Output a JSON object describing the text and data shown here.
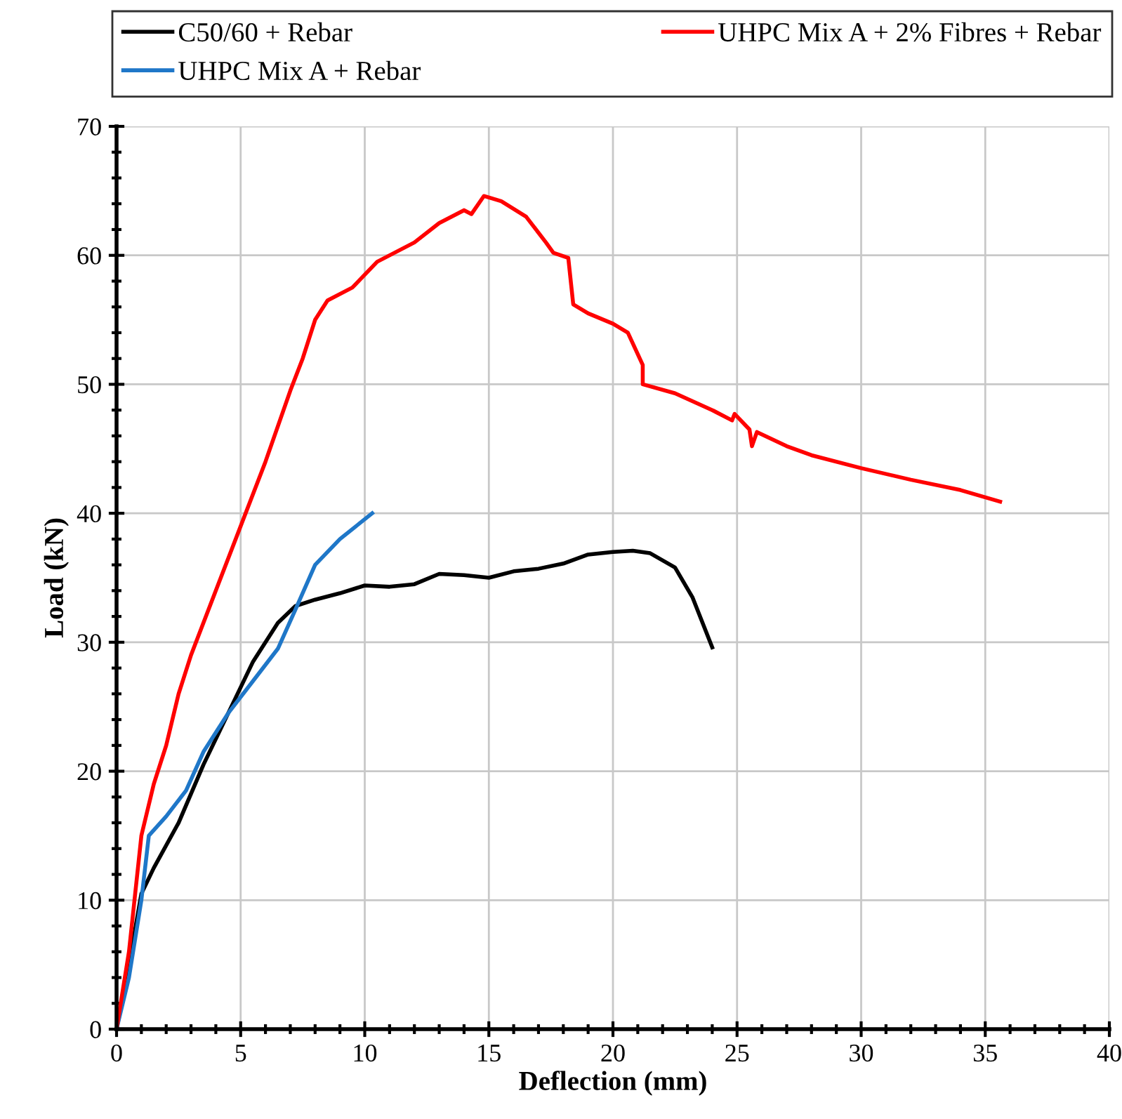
{
  "chart_data": {
    "type": "line",
    "xlabel": "Deflection (mm)",
    "ylabel": "Load (kN)",
    "xlim": [
      0,
      40
    ],
    "xticks": [
      0,
      5,
      10,
      15,
      20,
      25,
      30,
      35,
      40
    ],
    "ylim": [
      0,
      70
    ],
    "yticks": [
      0,
      10,
      20,
      30,
      40,
      50,
      60,
      70
    ],
    "grid": true,
    "legend": "top",
    "marker": "none",
    "line_style": "solid",
    "series": [
      {
        "name": "C50/60 + Rebar",
        "color": "#000000",
        "x": [
          0,
          0.5,
          1,
          1.5,
          2.5,
          3.5,
          4.5,
          5.5,
          6.5,
          7.2,
          8,
          9,
          10,
          11,
          12,
          13,
          14,
          15,
          16,
          17,
          18,
          19,
          20,
          20.8,
          21.5,
          22.5,
          23.2,
          24
        ],
        "values": [
          0,
          5,
          10.5,
          12.5,
          16,
          20.5,
          24.5,
          28.5,
          31.5,
          32.8,
          33.3,
          33.8,
          34.4,
          34.3,
          34.5,
          35.3,
          35.2,
          35.0,
          35.5,
          35.7,
          36.1,
          36.8,
          37.0,
          37.1,
          36.9,
          35.8,
          33.5,
          29.6
        ]
      },
      {
        "name": "UHPC Mix A + Rebar",
        "color": "#1f77c8",
        "x": [
          0,
          0.5,
          1,
          1.3,
          2,
          2.8,
          3.5,
          4.5,
          5.5,
          6.5,
          7.2,
          8,
          9,
          10.3
        ],
        "values": [
          0,
          4,
          10,
          15,
          16.5,
          18.5,
          21.5,
          24.5,
          27,
          29.5,
          32.5,
          36,
          38,
          40
        ]
      },
      {
        "name": "UHPC Mix A + 2% Fibres + Rebar",
        "color": "#ff0000",
        "x": [
          0,
          0.5,
          1,
          1.5,
          2,
          2.5,
          3,
          4,
          5,
          6,
          7,
          7.5,
          8,
          8.5,
          9.5,
          10.5,
          12,
          13,
          14,
          14.3,
          14.8,
          15.5,
          16.5,
          17.3,
          17.6,
          18.2,
          18.4,
          19,
          20,
          20.6,
          21.2,
          21.2,
          22.5,
          24,
          24.8,
          24.9,
          25.5,
          25.6,
          25.8,
          27,
          28,
          30,
          32,
          34,
          35.6
        ],
        "values": [
          0,
          6,
          15,
          19,
          22,
          26,
          29,
          34,
          39,
          44,
          49.5,
          52,
          55,
          56.5,
          57.5,
          59.5,
          61,
          62.5,
          63.5,
          63.2,
          64.6,
          64.2,
          63,
          61,
          60.2,
          59.8,
          56.2,
          55.5,
          54.7,
          54,
          51.5,
          50,
          49.3,
          48,
          47.2,
          47.7,
          46.5,
          45.2,
          46.3,
          45.2,
          44.5,
          43.5,
          42.6,
          41.8,
          40.9
        ]
      }
    ]
  }
}
